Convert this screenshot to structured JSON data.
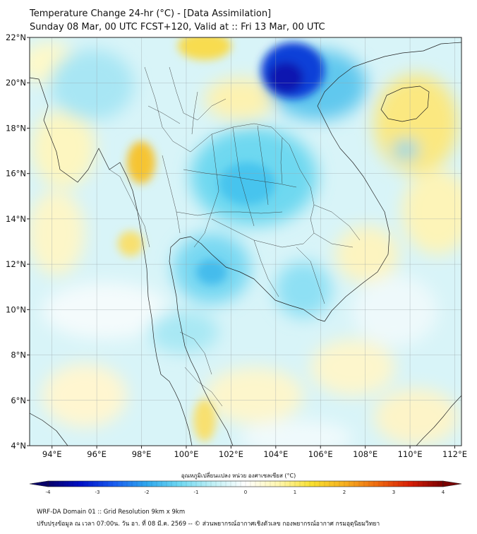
{
  "header": {
    "title_line1": "Temperature Change 24-hr (°C) - [Data Assimilation]",
    "title_line2": "Sunday 08 Mar, 00 UTC FCST+120, Valid at :: Fri 13 Mar, 00 UTC"
  },
  "map": {
    "lat_labels": [
      "22°N",
      "20°N",
      "18°N",
      "16°N",
      "14°N",
      "12°N",
      "10°N",
      "8°N",
      "6°N",
      "4°N"
    ],
    "lon_labels": [
      "94°E",
      "96°E",
      "98°E",
      "100°E",
      "102°E",
      "104°E",
      "106°E",
      "108°E",
      "110°E",
      "112°E"
    ],
    "lat_range": [
      4,
      22
    ],
    "lon_range": [
      93,
      112.3
    ],
    "field": "Temperature Change 24-hr (°C)"
  },
  "colorbar": {
    "title": "อุณหภูมิเปลี่ยนแปลง หน่วย องศาเซลเซียส (°C)",
    "ticks": [
      "-4",
      "-3",
      "-2",
      "-1",
      "0",
      "1",
      "2",
      "3",
      "4"
    ],
    "min": -4,
    "max": 4,
    "colors": [
      "#08006a",
      "#0010c8",
      "#1a5cf0",
      "#2fa8ee",
      "#6fd8f2",
      "#bff0f6",
      "#ffffff",
      "#fff7b0",
      "#f8e030",
      "#f6b020",
      "#ef6a10",
      "#d81e06",
      "#7a0000"
    ]
  },
  "footer": {
    "line1": "WRF-DA Domain 01 :: Grid Resolution 9km x 9km",
    "line2": "ปรับปรุงข้อมูล ณ เวลา 07:00น. วัน อา. ที่ 08 มี.ค. 2569 -- © ส่วนพยากรณ์อากาศเชิงตัวเลข กองพยากรณ์อากาศ กรมอุตุนิยมวิทยา"
  }
}
